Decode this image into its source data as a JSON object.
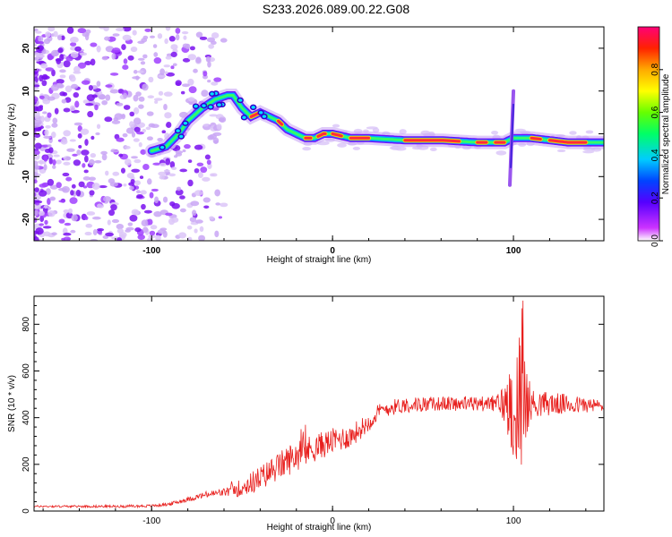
{
  "title": "S233.2026.089.00.22.G08",
  "colors": {
    "spectro": "#6a00ff",
    "snr_line": "#e8201e",
    "axis": "#000000",
    "ridge": "#ff2a3a"
  },
  "chart_data": [
    {
      "type": "heatmap",
      "name": "spectrogram",
      "xlabel": "Height of straight line (km)",
      "ylabel": "Frequency (Hz)",
      "xlim": [
        -165,
        150
      ],
      "ylim": [
        -25,
        25
      ],
      "xticks": [
        -100,
        0,
        100
      ],
      "yticks": [
        -20,
        -10,
        0,
        10,
        20
      ],
      "ridge_x": [
        -100,
        -92,
        -85,
        -80,
        -72,
        -65,
        -58,
        -55,
        -50,
        -45,
        -40,
        -35,
        -30,
        -25,
        -20,
        -15,
        -10,
        -5,
        0,
        10,
        20,
        40,
        60,
        80,
        90,
        95,
        100,
        110,
        120,
        130,
        140,
        150
      ],
      "ridge_y": [
        -4,
        -3,
        0,
        3,
        6,
        8,
        9,
        9,
        6,
        4,
        5,
        4,
        3,
        1,
        0,
        -1,
        -1,
        0,
        0,
        -1,
        -1,
        -1.5,
        -1.5,
        -2,
        -2,
        -2,
        -1,
        -1,
        -1.5,
        -2,
        -2,
        -2
      ],
      "spike": {
        "x": 100,
        "ymin": -12,
        "ymax": 10
      },
      "colorbar": {
        "label": "Normalized spectral amplitude",
        "range": [
          0,
          1
        ],
        "ticks": [
          "0.0",
          "0.2",
          "0.4",
          "0.6",
          "0.8"
        ]
      }
    },
    {
      "type": "line",
      "name": "snr",
      "xlabel": "Height of straight line (km)",
      "ylabel": "SNR (10 * v/v)",
      "xlim": [
        -165,
        150
      ],
      "ylim": [
        0,
        920
      ],
      "xticks": [
        -100,
        0,
        100
      ],
      "yticks": [
        0,
        200,
        400,
        600,
        800
      ],
      "trend_x": [
        -165,
        -120,
        -100,
        -90,
        -80,
        -70,
        -60,
        -50,
        -40,
        -30,
        -20,
        -10,
        0,
        10,
        20,
        25,
        30,
        40,
        60,
        80,
        90,
        95,
        100,
        105,
        110,
        120,
        150
      ],
      "trend_y": [
        20,
        20,
        22,
        30,
        50,
        70,
        80,
        100,
        140,
        190,
        240,
        270,
        300,
        320,
        380,
        420,
        440,
        455,
        460,
        460,
        460,
        460,
        450,
        460,
        460,
        460,
        450
      ],
      "noise_x": [
        -165,
        -100,
        -80,
        -60,
        -50,
        -40,
        -30,
        -20,
        -10,
        0,
        10,
        20,
        30,
        60,
        90,
        95,
        100,
        104,
        110,
        150
      ],
      "noise_amp": [
        4,
        6,
        10,
        18,
        40,
        55,
        60,
        70,
        60,
        55,
        50,
        40,
        35,
        30,
        35,
        90,
        220,
        330,
        60,
        25
      ]
    }
  ]
}
